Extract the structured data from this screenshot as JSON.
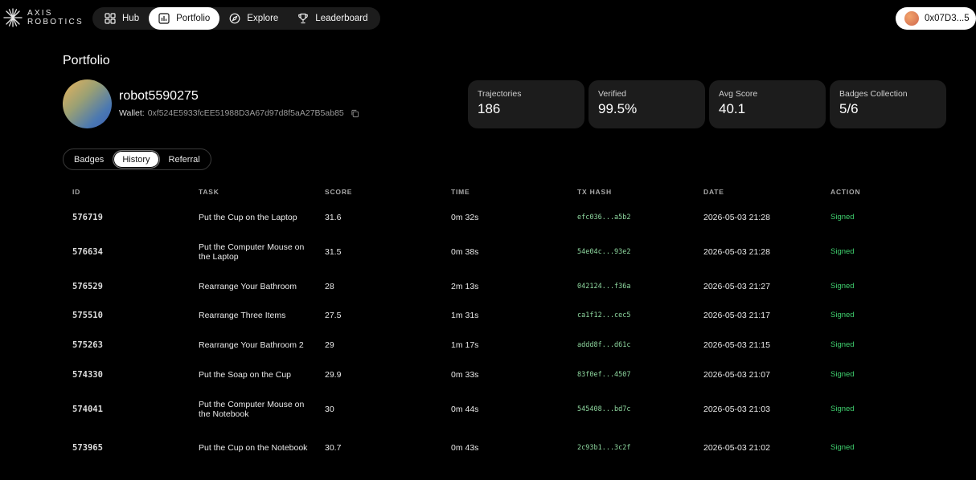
{
  "brand": {
    "line1": "AXIS",
    "line2": "ROBOTICS",
    "logo_icon": "starburst-logo-icon"
  },
  "nav": {
    "items": [
      {
        "label": "Hub",
        "icon": "grid-icon",
        "active": false
      },
      {
        "label": "Portfolio",
        "icon": "chart-icon",
        "active": true
      },
      {
        "label": "Explore",
        "icon": "compass-icon",
        "active": false
      },
      {
        "label": "Leaderboard",
        "icon": "trophy-icon",
        "active": false
      }
    ]
  },
  "wallet_button": {
    "label": "0x07D3...5"
  },
  "page": {
    "title": "Portfolio"
  },
  "profile": {
    "username": "robot5590275",
    "wallet_label": "Wallet:",
    "wallet_address": "0xf524E5933fcEE51988D3A67d97d8f5aA27B5ab85"
  },
  "stats": [
    {
      "label": "Trajectories",
      "value": "186"
    },
    {
      "label": "Verified",
      "value": "99.5%"
    },
    {
      "label": "Avg Score",
      "value": "40.1"
    },
    {
      "label": "Badges Collection",
      "value": "5/6"
    }
  ],
  "tabs": [
    {
      "label": "Badges",
      "active": false
    },
    {
      "label": "History",
      "active": true
    },
    {
      "label": "Referral",
      "active": false
    }
  ],
  "table": {
    "columns": [
      "ID",
      "TASK",
      "SCORE",
      "TIME",
      "TX HASH",
      "DATE",
      "ACTION"
    ],
    "rows": [
      {
        "id": "576719",
        "task": "Put the Cup on the Laptop",
        "score": "31.6",
        "time": "0m 32s",
        "hash": "efc036...a5b2",
        "date": "2026-05-03 21:28",
        "action": "Signed"
      },
      {
        "id": "576634",
        "task": "Put the Computer Mouse on the Laptop",
        "score": "31.5",
        "time": "0m 38s",
        "hash": "54e04c...93e2",
        "date": "2026-05-03 21:28",
        "action": "Signed"
      },
      {
        "id": "576529",
        "task": "Rearrange Your Bathroom",
        "score": "28",
        "time": "2m 13s",
        "hash": "042124...f36a",
        "date": "2026-05-03 21:27",
        "action": "Signed"
      },
      {
        "id": "575510",
        "task": "Rearrange Three Items",
        "score": "27.5",
        "time": "1m 31s",
        "hash": "ca1f12...cec5",
        "date": "2026-05-03 21:17",
        "action": "Signed"
      },
      {
        "id": "575263",
        "task": "Rearrange Your Bathroom 2",
        "score": "29",
        "time": "1m 17s",
        "hash": "addd8f...d61c",
        "date": "2026-05-03 21:15",
        "action": "Signed"
      },
      {
        "id": "574330",
        "task": "Put the Soap on the Cup",
        "score": "29.9",
        "time": "0m 33s",
        "hash": "83f0ef...4507",
        "date": "2026-05-03 21:07",
        "action": "Signed"
      },
      {
        "id": "574041",
        "task": "Put the Computer Mouse on the Notebook",
        "score": "30",
        "time": "0m 44s",
        "hash": "545408...bd7c",
        "date": "2026-05-03 21:03",
        "action": "Signed"
      },
      {
        "id": "573965",
        "task": "Put the Cup on the Notebook",
        "score": "30.7",
        "time": "0m 43s",
        "hash": "2c93b1...3c2f",
        "date": "2026-05-03 21:02",
        "action": "Signed"
      }
    ]
  },
  "colors": {
    "accent_signed": "#3fcf6e",
    "hash_text": "#8fd9a0",
    "card_bg": "#1c1c1c"
  }
}
